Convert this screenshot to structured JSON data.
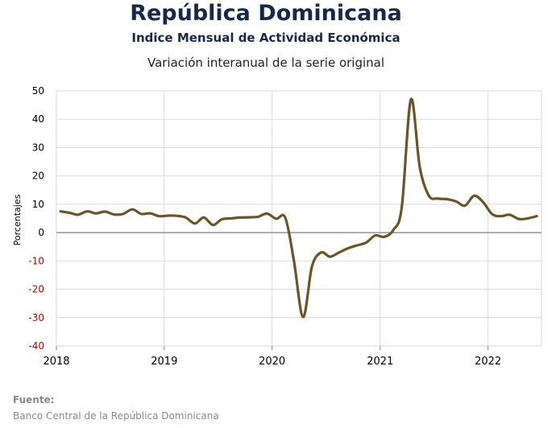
{
  "header": {
    "title": "República Dominicana",
    "subtitle": "Indice Mensual de  Actividad Económica",
    "subtitle2": "Variación interanual de la serie original"
  },
  "footer": {
    "label": "Fuente:",
    "text": "Banco Central de la República Dominicana"
  },
  "colors": {
    "line": "#6b5426",
    "grid": "#d9d9d9",
    "zero_line": "#7f7f7f",
    "negative_tick": "#c00000",
    "positive_tick": "#000000"
  },
  "chart_data": {
    "type": "line",
    "title": "Variación interanual de la serie original",
    "xlabel": "",
    "ylabel": "Porcentajes",
    "ylim": [
      -40,
      50
    ],
    "yticks": [
      50,
      40,
      30,
      20,
      10,
      0,
      -10,
      -20,
      -30,
      -40
    ],
    "xticks": [
      "2018",
      "2019",
      "2020",
      "2021",
      "2022"
    ],
    "grid": true,
    "series": [
      {
        "name": "",
        "x": [
          "2018-01",
          "2018-02",
          "2018-03",
          "2018-04",
          "2018-05",
          "2018-06",
          "2018-07",
          "2018-08",
          "2018-09",
          "2018-10",
          "2018-11",
          "2018-12",
          "2019-01",
          "2019-02",
          "2019-03",
          "2019-04",
          "2019-05",
          "2019-06",
          "2019-07",
          "2019-08",
          "2019-09",
          "2019-10",
          "2019-11",
          "2019-12",
          "2020-01",
          "2020-02",
          "2020-03",
          "2020-04",
          "2020-05",
          "2020-06",
          "2020-07",
          "2020-08",
          "2020-09",
          "2020-10",
          "2020-11",
          "2020-12",
          "2021-01",
          "2021-02",
          "2021-03",
          "2021-04",
          "2021-05",
          "2021-06",
          "2021-07",
          "2021-08",
          "2021-09",
          "2021-10",
          "2021-11",
          "2021-12",
          "2022-01",
          "2022-02",
          "2022-03",
          "2022-04",
          "2022-05",
          "2022-06"
        ],
        "values": [
          7.5,
          7.0,
          6.3,
          7.5,
          6.8,
          7.4,
          6.4,
          6.6,
          8.2,
          6.6,
          6.8,
          5.8,
          6.0,
          5.9,
          5.3,
          3.2,
          5.3,
          2.7,
          4.7,
          5.0,
          5.3,
          5.4,
          5.6,
          6.7,
          4.9,
          5.2,
          -10.0,
          -29.8,
          -12.0,
          -7.0,
          -8.5,
          -7.0,
          -5.5,
          -4.5,
          -3.5,
          -1.0,
          -1.5,
          1.0,
          9.0,
          47.0,
          23.0,
          13.0,
          12.0,
          11.8,
          11.0,
          9.5,
          13.0,
          10.8,
          6.5,
          5.8,
          6.3,
          4.8,
          5.0,
          5.8
        ]
      }
    ]
  }
}
